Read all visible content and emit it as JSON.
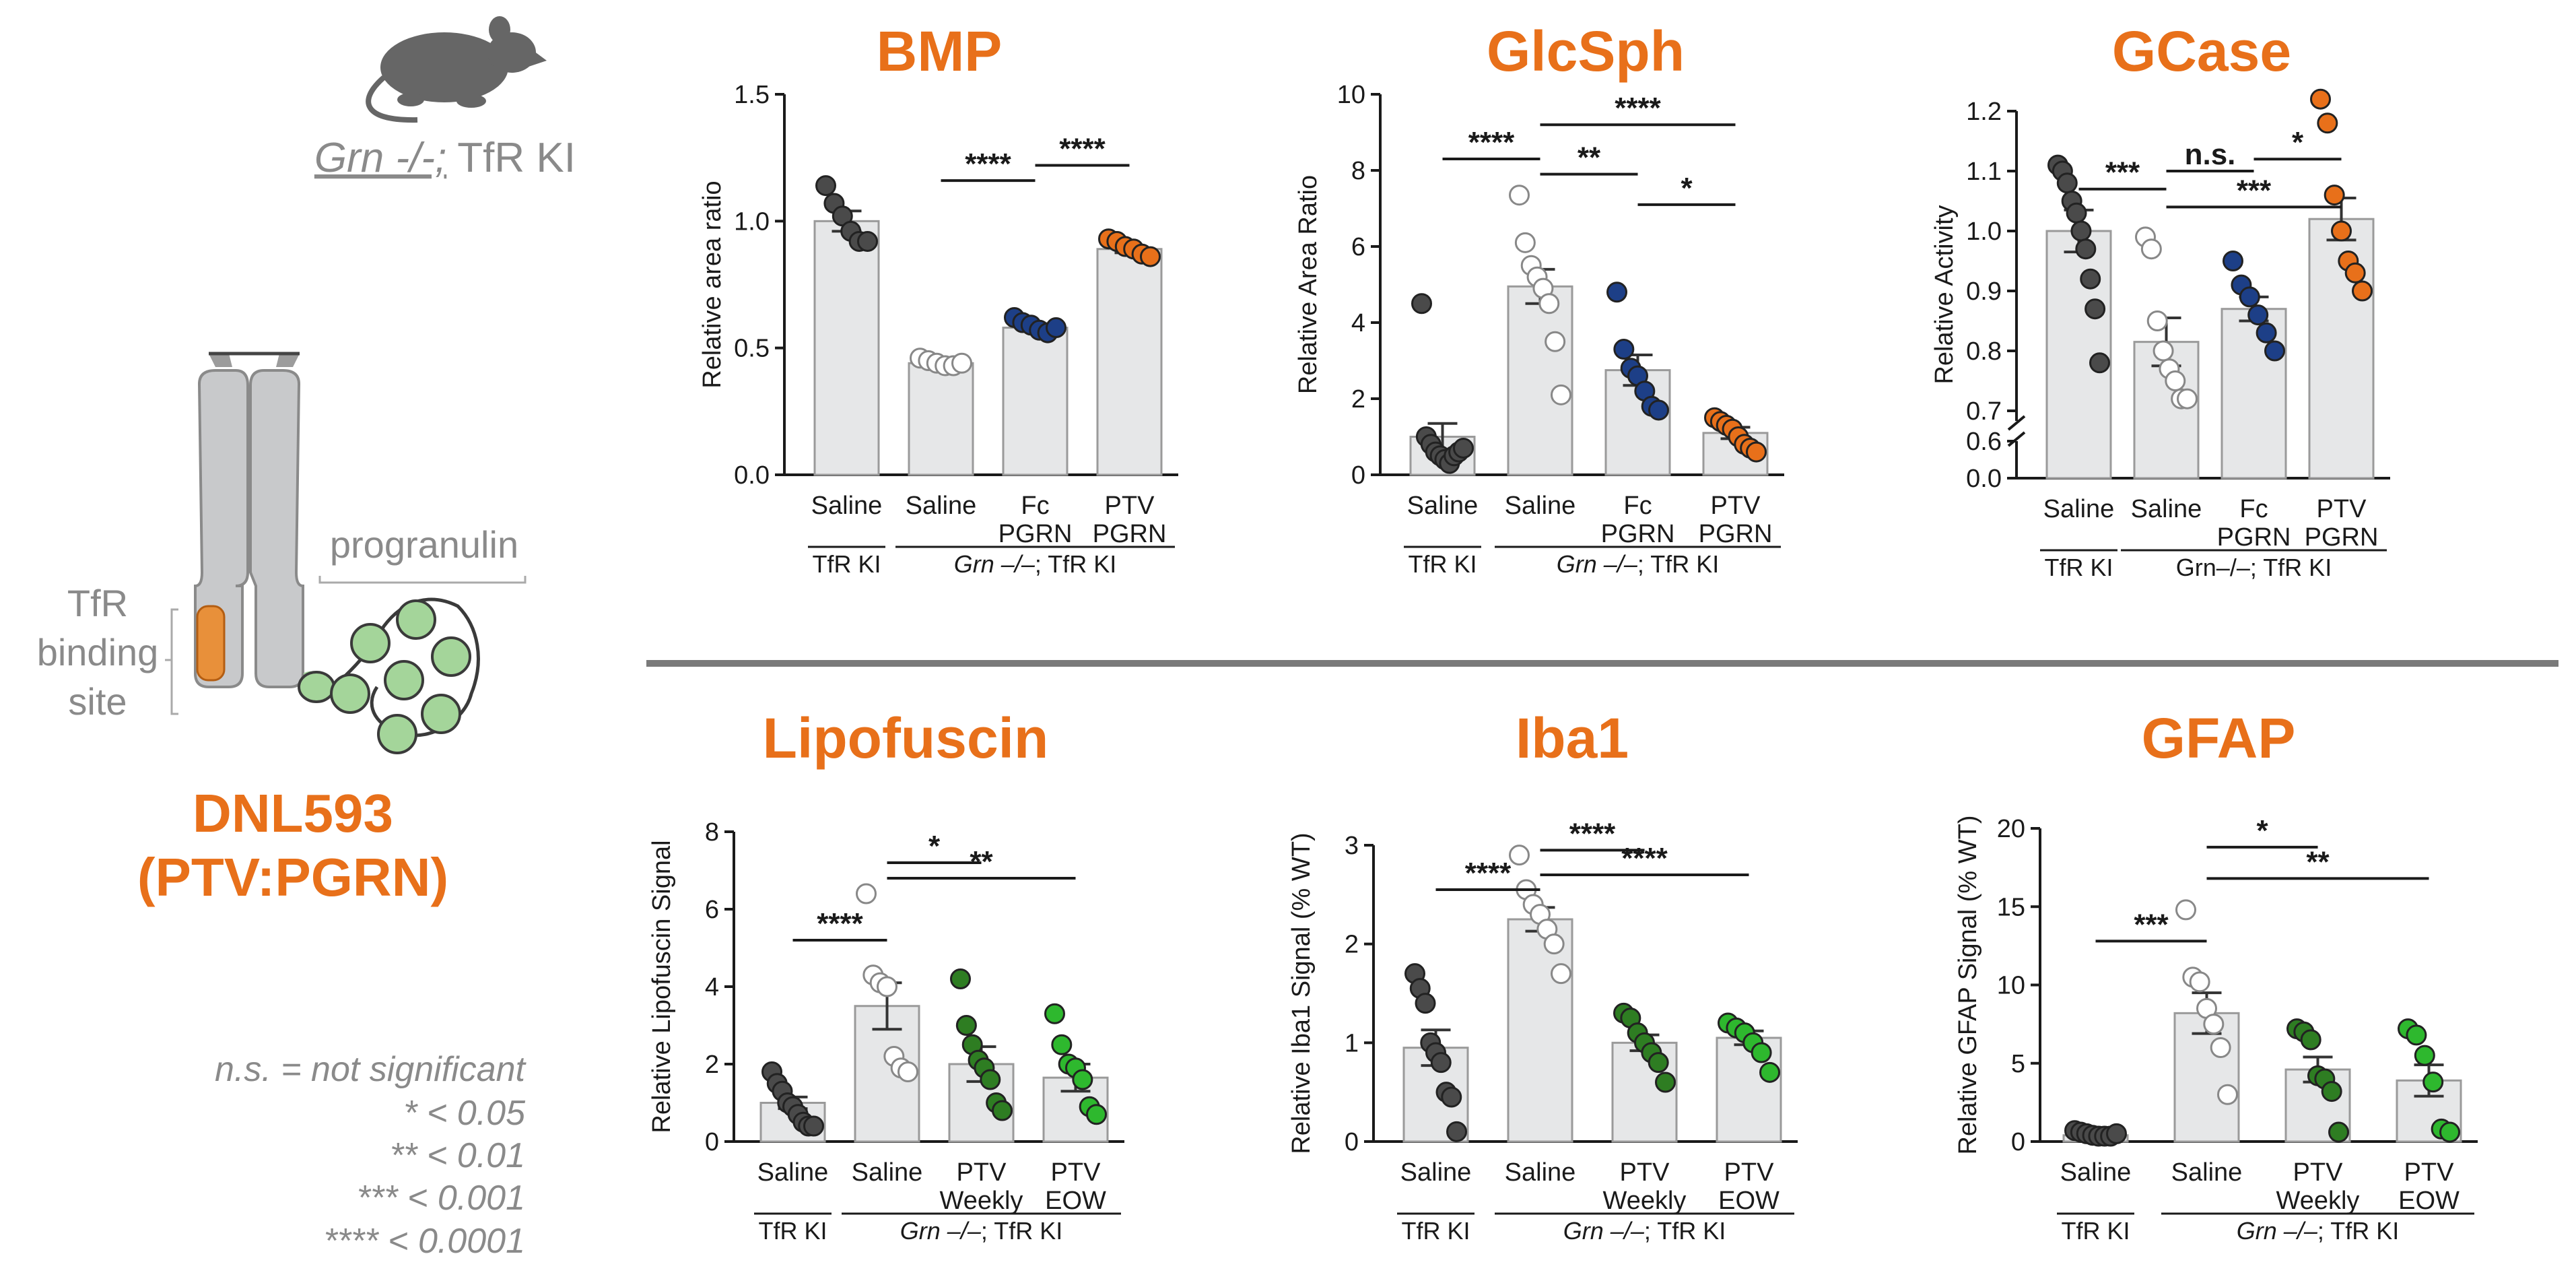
{
  "colors": {
    "orange": "#e8701a",
    "dark_gray": "#4a4a4a",
    "navy": "#1d3f87",
    "dark_green": "#2e7d22",
    "light_green": "#2eb82e",
    "bar_fill": "#e6e7e8",
    "axis": "#1a1a1a",
    "label_gray": "#8a8a8a",
    "divider": "#7a7a7a",
    "domain_green": "#a4d59a"
  },
  "left_panel": {
    "mouse_label_genotype": "Grn -/-;",
    "mouse_label_suffix": " TfR KI",
    "progranulin_label": "progranulin",
    "tfr_line1": "TfR",
    "tfr_line2": "binding",
    "tfr_line3": "site",
    "drug_name": "DNL593",
    "drug_sub": "(PTV:PGRN)"
  },
  "legend_text": {
    "ns": "n.s. = not significant",
    "one_star": "* < 0.05",
    "two_star": "** < 0.01",
    "three_star": "*** < 0.001",
    "four_star": "**** < 0.0001"
  },
  "chart_data": [
    {
      "type": "bar",
      "title": "BMP",
      "ylabel": "Relative area ratio",
      "ylim": [
        0,
        1.5
      ],
      "yticks": [
        "0.0",
        "0.5",
        "1.0",
        "1.5"
      ],
      "ytick_values": [
        0,
        0.5,
        1.0,
        1.5
      ],
      "categories": [
        [
          "Saline"
        ],
        [
          "Saline"
        ],
        [
          "Fc",
          "PGRN"
        ],
        [
          "PTV",
          "PGRN"
        ]
      ],
      "values": [
        1.0,
        0.44,
        0.58,
        0.89
      ],
      "sem": [
        0.04,
        0.01,
        0.015,
        0.015
      ],
      "point_colors": [
        "dark_gray",
        "white",
        "navy",
        "orange"
      ],
      "points": [
        [
          1.14,
          1.07,
          1.02,
          0.96,
          0.92,
          0.92
        ],
        [
          0.46,
          0.45,
          0.44,
          0.43,
          0.43,
          0.44
        ],
        [
          0.62,
          0.6,
          0.59,
          0.57,
          0.56,
          0.58
        ],
        [
          0.93,
          0.92,
          0.9,
          0.89,
          0.87,
          0.86
        ]
      ],
      "group_labels": [
        {
          "text": "TfR KI",
          "italic_prefix": ""
        },
        {
          "text": "; TfR KI",
          "italic_prefix": "Grn –/–"
        }
      ],
      "significance": [
        {
          "from": 1,
          "to": 2,
          "label": "****",
          "y": 1.16
        },
        {
          "from": 2,
          "to": 3,
          "label": "****",
          "y": 1.22
        }
      ]
    },
    {
      "type": "bar",
      "title": "GlcSph",
      "ylabel": "Relative Area Ratio",
      "ylim": [
        0,
        10
      ],
      "yticks": [
        "0",
        "2",
        "4",
        "6",
        "8",
        "10"
      ],
      "ytick_values": [
        0,
        2,
        4,
        6,
        8,
        10
      ],
      "categories": [
        [
          "Saline"
        ],
        [
          "Saline"
        ],
        [
          "Fc",
          "PGRN"
        ],
        [
          "PTV",
          "PGRN"
        ]
      ],
      "values": [
        1.0,
        4.95,
        2.75,
        1.1
      ],
      "sem": [
        0.35,
        0.45,
        0.4,
        0.15
      ],
      "point_colors": [
        "dark_gray",
        "white",
        "navy",
        "orange"
      ],
      "points": [
        [
          4.5,
          1.0,
          0.8,
          0.6,
          0.5,
          0.4,
          0.3,
          0.5,
          0.6,
          0.7
        ],
        [
          7.35,
          6.1,
          5.5,
          5.2,
          4.9,
          4.5,
          3.5,
          2.1
        ],
        [
          4.8,
          3.3,
          2.8,
          2.6,
          2.2,
          1.8,
          1.7
        ],
        [
          1.5,
          1.4,
          1.3,
          1.2,
          1.0,
          0.8,
          0.7,
          0.6
        ]
      ],
      "group_labels": [
        {
          "text": "TfR KI",
          "italic_prefix": ""
        },
        {
          "text": "; TfR KI",
          "italic_prefix": "Grn –/–"
        }
      ],
      "significance": [
        {
          "from": 0,
          "to": 1,
          "label": "****",
          "y": 8.3
        },
        {
          "from": 1,
          "to": 3,
          "label": "****",
          "y": 9.2
        },
        {
          "from": 1,
          "to": 2,
          "label": "**",
          "y": 7.9
        },
        {
          "from": 2,
          "to": 3,
          "label": "*",
          "y": 7.1
        }
      ]
    },
    {
      "type": "bar",
      "title": "GCase",
      "ylabel": "Relative Activity",
      "ylim": [
        0.7,
        1.2
      ],
      "broken_axis": true,
      "yticks": [
        "0.7",
        "0.8",
        "0.9",
        "1.0",
        "1.1",
        "1.2"
      ],
      "ytick_values": [
        0.7,
        0.8,
        0.9,
        1.0,
        1.1,
        1.2
      ],
      "lower_yticks": [
        "0.0",
        "0.6"
      ],
      "categories": [
        [
          "Saline"
        ],
        [
          "Saline"
        ],
        [
          "Fc",
          "PGRN"
        ],
        [
          "PTV",
          "PGRN"
        ]
      ],
      "values": [
        1.0,
        0.815,
        0.87,
        1.02
      ],
      "sem": [
        0.035,
        0.04,
        0.02,
        0.035
      ],
      "point_colors": [
        "dark_gray",
        "white",
        "navy",
        "orange"
      ],
      "points": [
        [
          1.11,
          1.1,
          1.08,
          1.05,
          1.03,
          1.0,
          0.97,
          0.92,
          0.87,
          0.78
        ],
        [
          0.99,
          0.97,
          0.85,
          0.8,
          0.77,
          0.75,
          0.72,
          0.72
        ],
        [
          0.95,
          0.91,
          0.89,
          0.86,
          0.83,
          0.8
        ],
        [
          1.22,
          1.18,
          1.06,
          1.0,
          0.95,
          0.93,
          0.9
        ]
      ],
      "group_labels": [
        {
          "text": "TfR KI",
          "italic_prefix": ""
        },
        {
          "text": "Grn–/–; TfR KI",
          "italic_prefix": ""
        }
      ],
      "significance": [
        {
          "from": 0,
          "to": 1,
          "label": "***",
          "y": 1.07
        },
        {
          "from": 1,
          "to": 2,
          "label": "n.s.",
          "y": 1.1
        },
        {
          "from": 2,
          "to": 3,
          "label": "*",
          "y": 1.12
        },
        {
          "from": 1,
          "to": 3,
          "label": "***",
          "y": 1.04
        }
      ]
    },
    {
      "type": "bar",
      "title": "Lipofuscin",
      "ylabel": "Relative Lipofuscin Signal",
      "ylim": [
        0,
        8
      ],
      "yticks": [
        "0",
        "2",
        "4",
        "6",
        "8"
      ],
      "ytick_values": [
        0,
        2,
        4,
        6,
        8
      ],
      "categories": [
        [
          "Saline"
        ],
        [
          "Saline"
        ],
        [
          "PTV",
          "Weekly"
        ],
        [
          "PTV",
          "EOW"
        ]
      ],
      "values": [
        1.0,
        3.5,
        2.0,
        1.65
      ],
      "sem": [
        0.15,
        0.6,
        0.45,
        0.35
      ],
      "point_colors": [
        "dark_gray",
        "white",
        "dark_green",
        "light_green"
      ],
      "points": [
        [
          1.8,
          1.5,
          1.3,
          1.0,
          0.9,
          0.7,
          0.5,
          0.4,
          0.4
        ],
        [
          6.4,
          4.3,
          4.1,
          4.0,
          2.2,
          1.9,
          1.8
        ],
        [
          4.2,
          3.0,
          2.5,
          2.1,
          1.9,
          1.6,
          1.0,
          0.8
        ],
        [
          3.3,
          2.5,
          2.0,
          1.9,
          1.6,
          0.9,
          0.7
        ]
      ],
      "group_labels": [
        {
          "text": "TfR KI",
          "italic_prefix": ""
        },
        {
          "text": "; TfR KI",
          "italic_prefix": "Grn –/–"
        }
      ],
      "significance": [
        {
          "from": 0,
          "to": 1,
          "label": "****",
          "y": 5.2
        },
        {
          "from": 1,
          "to": 2,
          "label": "*",
          "y": 7.2
        },
        {
          "from": 1,
          "to": 3,
          "label": "**",
          "y": 6.8
        }
      ]
    },
    {
      "type": "bar",
      "title": "Iba1",
      "ylabel": "Relative Iba1 Signal (% WT)",
      "ylim": [
        0,
        3
      ],
      "yticks": [
        "0",
        "1",
        "2",
        "3"
      ],
      "ytick_values": [
        0,
        1,
        2,
        3
      ],
      "categories": [
        [
          "Saline"
        ],
        [
          "Saline"
        ],
        [
          "PTV",
          "Weekly"
        ],
        [
          "PTV",
          "EOW"
        ]
      ],
      "values": [
        0.95,
        2.25,
        1.0,
        1.05
      ],
      "sem": [
        0.18,
        0.12,
        0.08,
        0.07
      ],
      "point_colors": [
        "dark_gray",
        "white",
        "dark_green",
        "light_green"
      ],
      "points": [
        [
          1.7,
          1.55,
          1.4,
          1.0,
          0.9,
          0.8,
          0.5,
          0.45,
          0.1
        ],
        [
          2.9,
          2.55,
          2.4,
          2.3,
          2.15,
          2.0,
          1.7
        ],
        [
          1.3,
          1.25,
          1.1,
          1.0,
          0.9,
          0.8,
          0.6
        ],
        [
          1.2,
          1.15,
          1.1,
          1.0,
          0.9,
          0.7
        ]
      ],
      "group_labels": [
        {
          "text": "TfR KI",
          "italic_prefix": ""
        },
        {
          "text": "; TfR KI",
          "italic_prefix": "Grn –/–"
        }
      ],
      "significance": [
        {
          "from": 0,
          "to": 1,
          "label": "****",
          "y": 2.55
        },
        {
          "from": 1,
          "to": 2,
          "label": "****",
          "y": 2.95
        },
        {
          "from": 1,
          "to": 3,
          "label": "****",
          "y": 2.7
        }
      ]
    },
    {
      "type": "bar",
      "title": "GFAP",
      "ylabel": "Relative GFAP Signal (% WT)",
      "ylim": [
        0,
        20
      ],
      "yticks": [
        "0",
        "5",
        "10",
        "15",
        "20"
      ],
      "ytick_values": [
        0,
        5,
        10,
        15,
        20
      ],
      "categories": [
        [
          "Saline"
        ],
        [
          "Saline"
        ],
        [
          "PTV",
          "Weekly"
        ],
        [
          "PTV",
          "EOW"
        ]
      ],
      "values": [
        0.4,
        8.2,
        4.6,
        3.9
      ],
      "sem": [
        0.1,
        1.3,
        0.8,
        1.0
      ],
      "point_colors": [
        "dark_gray",
        "white",
        "dark_green",
        "light_green"
      ],
      "points": [
        [
          0.7,
          0.6,
          0.5,
          0.4,
          0.3,
          0.2,
          0.1,
          0.5
        ],
        [
          14.8,
          10.5,
          10.2,
          8.5,
          7.5,
          6.0,
          3.0
        ],
        [
          7.2,
          7.0,
          6.5,
          4.2,
          4.0,
          3.2,
          0.6
        ],
        [
          7.2,
          6.8,
          5.5,
          3.8,
          0.8,
          0.6
        ]
      ],
      "group_labels": [
        {
          "text": "TfR KI",
          "italic_prefix": ""
        },
        {
          "text": "; TfR KI",
          "italic_prefix": "Grn –/–"
        }
      ],
      "significance": [
        {
          "from": 0,
          "to": 1,
          "label": "***",
          "y": 12.8
        },
        {
          "from": 1,
          "to": 2,
          "label": "*",
          "y": 18.8
        },
        {
          "from": 1,
          "to": 3,
          "label": "**",
          "y": 16.8
        }
      ]
    }
  ]
}
